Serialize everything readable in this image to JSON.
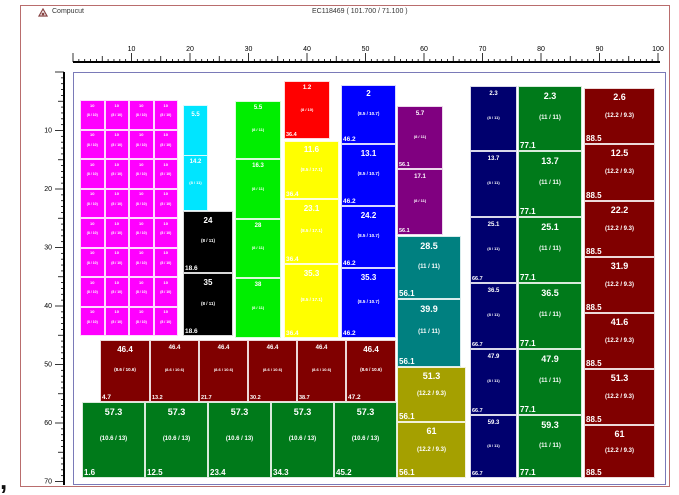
{
  "header": {
    "app_name": "Compucut",
    "job_id": "EC118469  ( 101.700 / 71.100 )"
  },
  "ruler_x": {
    "labels": [
      "10",
      "20",
      "30",
      "40",
      "50",
      "60",
      "70",
      "80",
      "90",
      "100"
    ]
  },
  "ruler_y": {
    "labels": [
      "10",
      "20",
      "30",
      "40",
      "50",
      "60",
      "70"
    ]
  },
  "pieces": [
    {
      "color": "#ff00ff",
      "num": "",
      "dim": "",
      "x": "",
      "col": 0,
      "row": 0,
      "group": "mag"
    },
    {
      "color": "#00e5ff",
      "num": "5.5",
      "dim": "",
      "x": "",
      "c": [
        183,
        105,
        25,
        103
      ]
    },
    {
      "color": "#000000",
      "num": "24",
      "dim": "(8 / 11)",
      "x": "18.6",
      "c": [
        183,
        211,
        50,
        62
      ]
    },
    {
      "color": "#000000",
      "num": "35",
      "dim": "(8 / 11)",
      "x": "18.6",
      "c": [
        183,
        273,
        50,
        63
      ]
    },
    {
      "color": "#00ee00",
      "num": "5.5",
      "dim": "(8 / 11)",
      "x": "",
      "c": [
        235,
        101,
        46,
        58
      ]
    },
    {
      "color": "#00ee00",
      "num": "16.3",
      "dim": "(8 / 11)",
      "x": "",
      "c": [
        235,
        159,
        46,
        60
      ]
    },
    {
      "color": "#00ee00",
      "num": "28",
      "dim": "(8 / 11)",
      "x": "",
      "c": [
        235,
        219,
        46,
        59
      ]
    },
    {
      "color": "#00ee00",
      "num": "38",
      "dim": "(8 / 11)",
      "x": "",
      "c": [
        235,
        278,
        46,
        60
      ]
    },
    {
      "color": "#ff0000",
      "num": "1.2",
      "dim": "(8 / 10)",
      "x": "36.4",
      "c": [
        284,
        81,
        46,
        58
      ]
    },
    {
      "color": "#ffff00",
      "num": "11.6",
      "dim": "(8.5 / 17.1)",
      "x": "36.4",
      "c": [
        284,
        141,
        55,
        58
      ]
    },
    {
      "color": "#ffff00",
      "num": "23.1",
      "dim": "(8.5 / 17.1)",
      "x": "36.4",
      "c": [
        284,
        199,
        55,
        65
      ]
    },
    {
      "color": "#ffff00",
      "num": "35.3",
      "dim": "(8.5 / 17.1)",
      "x": "36.4",
      "c": [
        284,
        264,
        55,
        74
      ]
    },
    {
      "color": "#0000ff",
      "num": "2",
      "dim": "(8.5 / 10.7)",
      "x": "46.2",
      "c": [
        341,
        85,
        55,
        59
      ]
    },
    {
      "color": "#0000ff",
      "num": "13.1",
      "dim": "(8.5 / 10.7)",
      "x": "46.2",
      "c": [
        341,
        144,
        55,
        62
      ]
    },
    {
      "color": "#0000ff",
      "num": "24.2",
      "dim": "(8.5 / 10.7)",
      "x": "46.2",
      "c": [
        341,
        206,
        55,
        62
      ]
    },
    {
      "color": "#0000ff",
      "num": "35.3",
      "dim": "(8.5 / 10.7)",
      "x": "46.2",
      "c": [
        341,
        268,
        55,
        70
      ]
    },
    {
      "color": "#800080",
      "num": "5.7",
      "dim": "(8 / 11)",
      "x": "56.1",
      "c": [
        397,
        106,
        46,
        63
      ]
    },
    {
      "color": "#800080",
      "num": "17.1",
      "dim": "(8 / 11)",
      "x": "56.1",
      "c": [
        397,
        169,
        46,
        66
      ]
    },
    {
      "color": "#008080",
      "num": "28.5",
      "dim": "(11 / 11)",
      "x": "56.1",
      "c": [
        397,
        236,
        64,
        63
      ]
    },
    {
      "color": "#008080",
      "num": "39.9",
      "dim": "(11 / 11)",
      "x": "56.1",
      "c": [
        397,
        299,
        64,
        68
      ]
    },
    {
      "color": "#a5a000",
      "num": "51.3",
      "dim": "(12.2 / 9.3)",
      "x": "56.1",
      "c": [
        397,
        367,
        69,
        55
      ]
    },
    {
      "color": "#a5a000",
      "num": "61",
      "dim": "(12.2 / 9.3)",
      "x": "56.1",
      "c": [
        397,
        422,
        69,
        56
      ]
    },
    {
      "color": "#800000",
      "num": "46.4",
      "dim": "(8.6 / 10.6)",
      "x": "4.7",
      "c": [
        100,
        340,
        50,
        62
      ]
    },
    {
      "color": "#800000",
      "num": "46.4",
      "dim": "(8.6 / 10.6)",
      "x": "13.2",
      "c": [
        150,
        340,
        49,
        62
      ]
    },
    {
      "color": "#800000",
      "num": "46.4",
      "dim": "(8.6 / 10.6)",
      "x": "21.7",
      "c": [
        199,
        340,
        49,
        62
      ]
    },
    {
      "color": "#800000",
      "num": "46.4",
      "dim": "(8.6 / 10.6)",
      "x": "30.2",
      "c": [
        248,
        340,
        49,
        62
      ]
    },
    {
      "color": "#800000",
      "num": "46.4",
      "dim": "(8.6 / 10.6)",
      "x": "38.7",
      "c": [
        297,
        340,
        49,
        62
      ]
    },
    {
      "color": "#800000",
      "num": "46.4",
      "dim": "(8.6 / 10.6)",
      "x": "47.2",
      "c": [
        346,
        340,
        50,
        62
      ]
    },
    {
      "color": "#007a1a",
      "num": "57.3",
      "dim": "(10.6 / 13)",
      "x": "1.6",
      "c": [
        82,
        402,
        63,
        76
      ]
    },
    {
      "color": "#007a1a",
      "num": "57.3",
      "dim": "(10.6 / 13)",
      "x": "12.5",
      "c": [
        145,
        402,
        63,
        76
      ]
    },
    {
      "color": "#007a1a",
      "num": "57.3",
      "dim": "(10.6 / 13)",
      "x": "23.4",
      "c": [
        208,
        402,
        63,
        76
      ]
    },
    {
      "color": "#007a1a",
      "num": "57.3",
      "dim": "(10.6 / 13)",
      "x": "34.3",
      "c": [
        271,
        402,
        63,
        76
      ]
    },
    {
      "color": "#007a1a",
      "num": "57.3",
      "dim": "(10.6 / 13)",
      "x": "45.2",
      "c": [
        334,
        402,
        63,
        76
      ]
    },
    {
      "color": "#00006e",
      "num": "2.3",
      "dim": "(8 / 11)",
      "x": "",
      "c": [
        470,
        86,
        47,
        65
      ]
    },
    {
      "color": "#00006e",
      "num": "13.7",
      "dim": "(8 / 11)",
      "x": "",
      "c": [
        470,
        151,
        47,
        66
      ]
    },
    {
      "color": "#00006e",
      "num": "25.1",
      "dim": "(8 / 11)",
      "x": "66.7",
      "c": [
        470,
        217,
        47,
        66
      ]
    },
    {
      "color": "#00006e",
      "num": "36.5",
      "dim": "(8 / 11)",
      "x": "66.7",
      "c": [
        470,
        283,
        47,
        66
      ]
    },
    {
      "color": "#00006e",
      "num": "47.9",
      "dim": "(8 / 11)",
      "x": "66.7",
      "c": [
        470,
        349,
        47,
        66
      ]
    },
    {
      "color": "#00006e",
      "num": "59.3",
      "dim": "(8 / 11)",
      "x": "66.7",
      "c": [
        470,
        415,
        47,
        63
      ]
    },
    {
      "color": "#007a1a",
      "num": "2.3",
      "dim": "(11 / 11)",
      "x": "77.1",
      "c": [
        518,
        86,
        64,
        65
      ]
    },
    {
      "color": "#007a1a",
      "num": "13.7",
      "dim": "(11 / 11)",
      "x": "77.1",
      "c": [
        518,
        151,
        64,
        66
      ]
    },
    {
      "color": "#007a1a",
      "num": "25.1",
      "dim": "(11 / 11)",
      "x": "77.1",
      "c": [
        518,
        217,
        64,
        66
      ]
    },
    {
      "color": "#007a1a",
      "num": "36.5",
      "dim": "(11 / 11)",
      "x": "77.1",
      "c": [
        518,
        283,
        64,
        66
      ]
    },
    {
      "color": "#007a1a",
      "num": "47.9",
      "dim": "(11 / 11)",
      "x": "77.1",
      "c": [
        518,
        349,
        64,
        66
      ]
    },
    {
      "color": "#007a1a",
      "num": "59.3",
      "dim": "(11 / 11)",
      "x": "77.1",
      "c": [
        518,
        415,
        64,
        63
      ]
    },
    {
      "color": "#800000",
      "num": "2.6",
      "dim": "(12.2 / 9.3)",
      "x": "88.5",
      "c": [
        584,
        88,
        71,
        56
      ]
    },
    {
      "color": "#800000",
      "num": "12.5",
      "dim": "(12.2 / 9.3)",
      "x": "88.5",
      "c": [
        584,
        144,
        71,
        57
      ]
    },
    {
      "color": "#800000",
      "num": "22.2",
      "dim": "(12.2 / 9.3)",
      "x": "88.5",
      "c": [
        584,
        201,
        71,
        56
      ]
    },
    {
      "color": "#800000",
      "num": "31.9",
      "dim": "(12.2 / 9.3)",
      "x": "88.5",
      "c": [
        584,
        257,
        71,
        56
      ]
    },
    {
      "color": "#800000",
      "num": "41.6",
      "dim": "(12.2 / 9.3)",
      "x": "88.5",
      "c": [
        584,
        313,
        71,
        56
      ]
    },
    {
      "color": "#800000",
      "num": "51.3",
      "dim": "(12.2 / 9.3)",
      "x": "88.5",
      "c": [
        584,
        369,
        71,
        56
      ]
    },
    {
      "color": "#800000",
      "num": "61",
      "dim": "(12.2 / 9.3)",
      "x": "88.5",
      "c": [
        584,
        425,
        71,
        53
      ]
    }
  ],
  "magenta_grid": {
    "color": "#ff00ff",
    "cell_text": "(8 / 10)",
    "num_text": "10"
  }
}
